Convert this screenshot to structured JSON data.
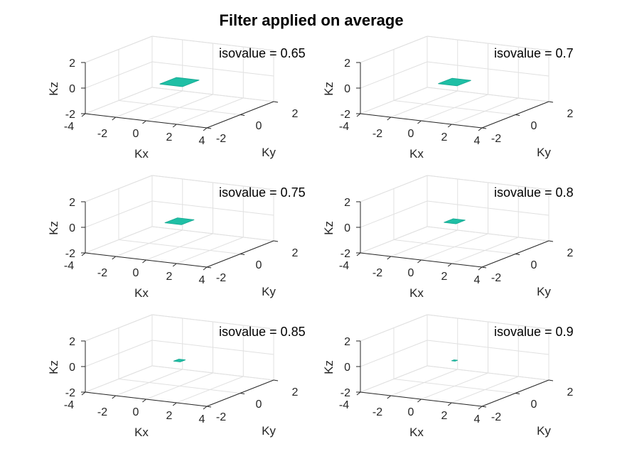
{
  "title": "Filter applied on average",
  "colors": {
    "surface": "#1fbfa5",
    "surface_edge": "#14a690",
    "axis": "#262626",
    "grid": "#e0e0e0",
    "background": "#ffffff"
  },
  "chart_data": [
    {
      "type": "isosurface",
      "grid": true,
      "annotation": "isovalue = 0.65",
      "xlabel": "Kx",
      "ylabel": "Ky",
      "zlabel": "Kz",
      "xlim": [
        -4,
        4
      ],
      "ylim": [
        -2,
        2
      ],
      "zlim": [
        -2,
        2
      ],
      "xticks": [
        "-4",
        "-2",
        "0",
        "2",
        "4"
      ],
      "yticks": [
        "-2",
        "0",
        "2"
      ],
      "zticks": [
        "-2",
        "0",
        "2"
      ],
      "surface": {
        "center": [
          0,
          0,
          0
        ],
        "extent": [
          0.75,
          0.5
        ]
      }
    },
    {
      "type": "isosurface",
      "grid": true,
      "annotation": "isovalue = 0.7",
      "xlabel": "Kx",
      "ylabel": "Ky",
      "zlabel": "Kz",
      "xlim": [
        -4,
        4
      ],
      "ylim": [
        -2,
        2
      ],
      "zlim": [
        -2,
        2
      ],
      "xticks": [
        "-4",
        "-2",
        "0",
        "2",
        "4"
      ],
      "yticks": [
        "-2",
        "0",
        "2"
      ],
      "zticks": [
        "-2",
        "0",
        "2"
      ],
      "surface": {
        "center": [
          0,
          0,
          0
        ],
        "extent": [
          0.62,
          0.42
        ]
      }
    },
    {
      "type": "isosurface",
      "grid": true,
      "annotation": "isovalue = 0.75",
      "xlabel": "Kx",
      "ylabel": "Ky",
      "zlabel": "Kz",
      "xlim": [
        -4,
        4
      ],
      "ylim": [
        -2,
        2
      ],
      "zlim": [
        -2,
        2
      ],
      "xticks": [
        "-4",
        "-2",
        "0",
        "2",
        "4"
      ],
      "yticks": [
        "-2",
        "0",
        "2"
      ],
      "zticks": [
        "-2",
        "0",
        "2"
      ],
      "surface": {
        "center": [
          0,
          0,
          0
        ],
        "extent": [
          0.55,
          0.38
        ]
      }
    },
    {
      "type": "isosurface",
      "grid": true,
      "annotation": "isovalue = 0.8",
      "xlabel": "Kx",
      "ylabel": "Ky",
      "zlabel": "Kz",
      "xlim": [
        -4,
        4
      ],
      "ylim": [
        -2,
        2
      ],
      "zlim": [
        -2,
        2
      ],
      "xticks": [
        "-4",
        "-2",
        "0",
        "2",
        "4"
      ],
      "yticks": [
        "-2",
        "0",
        "2"
      ],
      "zticks": [
        "-2",
        "0",
        "2"
      ],
      "surface": {
        "center": [
          0,
          0,
          0
        ],
        "extent": [
          0.4,
          0.28
        ]
      }
    },
    {
      "type": "isosurface",
      "grid": true,
      "annotation": "isovalue = 0.85",
      "xlabel": "Kx",
      "ylabel": "Ky",
      "zlabel": "Kz",
      "xlim": [
        -4,
        4
      ],
      "ylim": [
        -2,
        2
      ],
      "zlim": [
        -2,
        2
      ],
      "xticks": [
        "-4",
        "-2",
        "0",
        "2",
        "4"
      ],
      "yticks": [
        "-2",
        "0",
        "2"
      ],
      "zticks": [
        "-2",
        "0",
        "2"
      ],
      "surface": {
        "center": [
          0,
          0,
          0
        ],
        "extent": [
          0.22,
          0.16
        ]
      }
    },
    {
      "type": "isosurface",
      "grid": true,
      "annotation": "isovalue = 0.9",
      "xlabel": "Kx",
      "ylabel": "Ky",
      "zlabel": "Kz",
      "xlim": [
        -4,
        4
      ],
      "ylim": [
        -2,
        2
      ],
      "zlim": [
        -2,
        2
      ],
      "xticks": [
        "-4",
        "-2",
        "0",
        "2",
        "4"
      ],
      "yticks": [
        "-2",
        "0",
        "2"
      ],
      "zticks": [
        "-2",
        "0",
        "2"
      ],
      "surface": {
        "center": [
          0,
          0,
          0
        ],
        "extent": [
          0.12,
          0.08
        ]
      }
    }
  ]
}
